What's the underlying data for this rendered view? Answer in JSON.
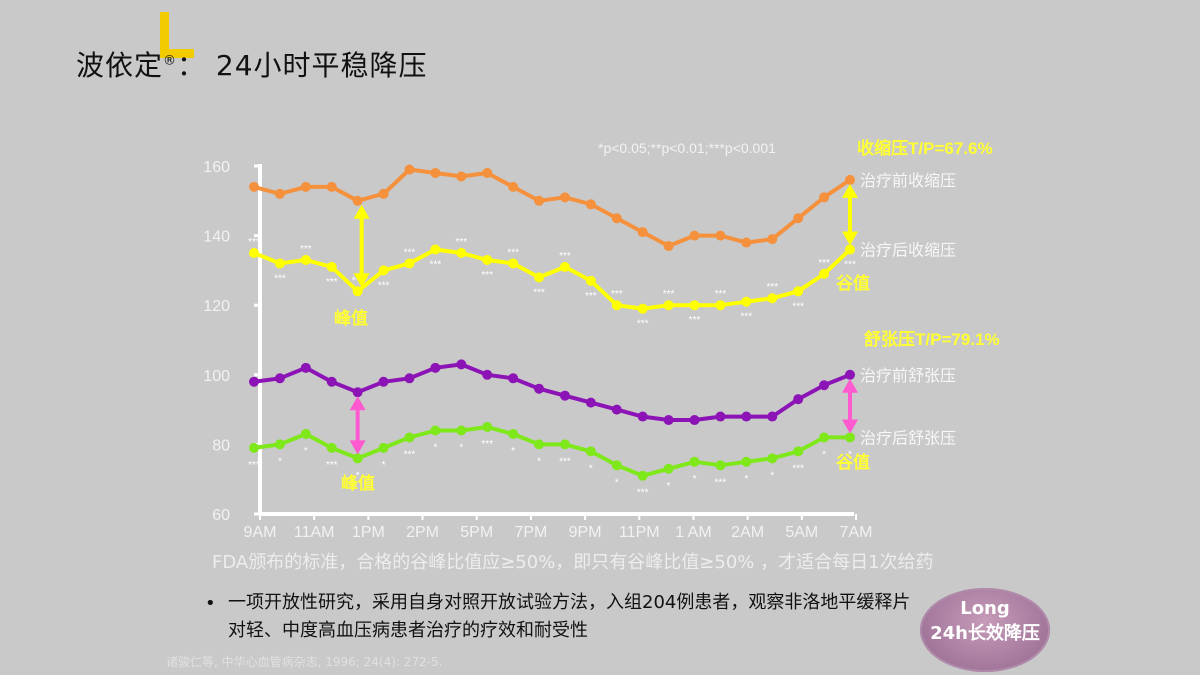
{
  "page": {
    "title": "波依定",
    "title_mark": "®",
    "title_rest": "：  24小时平稳降压",
    "caption": "FDA颁布的标准，合格的谷峰比值应≥50%，即只有谷峰比值≥50% ，才适合每日1次给药",
    "bullet": "•",
    "description": "一项开放性研究，采用自身对照开放试验方法，入组204例患者，观察非洛地平缓释片对轻、中度高血压病患者治疗的疗效和耐受性",
    "source": "诸骏仁等, 中华心血管病杂志, 1996; 24(4): 272-5.",
    "badge_line1": "Long",
    "badge_line2": "24h长效降压"
  },
  "colors": {
    "background": "#c9c9c9",
    "systolic_before": "#f5913c",
    "systolic_after": "#ffff00",
    "diastolic_before": "#8c13b5",
    "diastolic_after": "#7fe81a",
    "arrow_systolic": "#ffff00",
    "arrow_diastolic": "#ff5ad0",
    "annotation_yellow": "#ffff33",
    "axis": "#ffffff"
  },
  "chart_data": {
    "type": "line",
    "significance_note": "*p<0.05;**p<0.01;***p<0.001",
    "x_tick_labels": [
      "9AM",
      "11AM",
      "1PM",
      "2PM",
      "5PM",
      "7PM",
      "9PM",
      "11PM",
      "1 AM",
      "2AM",
      "5AM",
      "7AM"
    ],
    "y_ticks": [
      60,
      80,
      100,
      120,
      140,
      160
    ],
    "ylim": [
      60,
      160
    ],
    "series": [
      {
        "name": "治疗前收缩压",
        "key": "systolic_before",
        "values": [
          154,
          152,
          154,
          154,
          150,
          152,
          159,
          158,
          157,
          158,
          154,
          150,
          151,
          149,
          145,
          141,
          137,
          140,
          140,
          138,
          139,
          145,
          151,
          156
        ]
      },
      {
        "name": "治疗后收缩压",
        "key": "systolic_after",
        "values": [
          135,
          132,
          133,
          131,
          124,
          130,
          132,
          136,
          135,
          133,
          132,
          128,
          131,
          127,
          120,
          119,
          120,
          120,
          120,
          121,
          122,
          124,
          129,
          136
        ]
      },
      {
        "name": "治疗前舒张压",
        "key": "diastolic_before",
        "values": [
          98,
          99,
          102,
          98,
          95,
          98,
          99,
          102,
          103,
          100,
          99,
          96,
          94,
          92,
          90,
          88,
          87,
          87,
          88,
          88,
          88,
          93,
          97,
          100
        ]
      },
      {
        "name": "治疗后舒张压",
        "key": "diastolic_after",
        "values": [
          79,
          80,
          83,
          79,
          76,
          79,
          82,
          84,
          84,
          85,
          83,
          80,
          80,
          78,
          74,
          71,
          73,
          75,
          74,
          75,
          76,
          78,
          82,
          82
        ]
      }
    ],
    "annotations": {
      "systolic_tp": "收缩压T/P=67.6%",
      "diastolic_tp": "舒张压T/P=79.1%",
      "peak": "峰值",
      "trough": "谷值",
      "sig3": "***",
      "sig1": "*"
    }
  }
}
